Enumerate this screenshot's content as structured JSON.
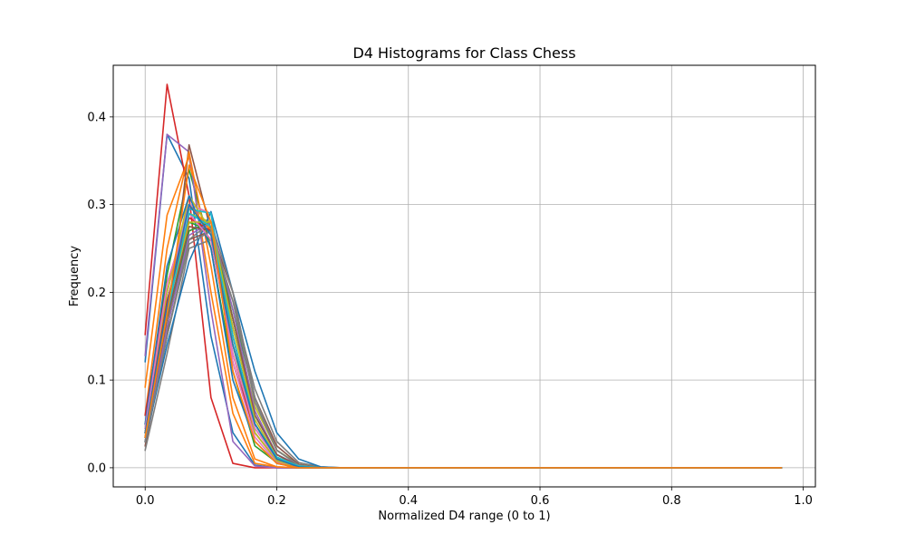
{
  "chart_data": {
    "type": "line",
    "title": "D4 Histograms for Class Chess",
    "xlabel": "Normalized D4 range (0 to 1)",
    "ylabel": "Frequency",
    "xlim": [
      -0.0485,
      1.0185
    ],
    "ylim": [
      -0.0218,
      0.4588
    ],
    "xticks": [
      0.0,
      0.2,
      0.4,
      0.6,
      0.8,
      1.0
    ],
    "xtick_labels": [
      "0.0",
      "0.2",
      "0.4",
      "0.6",
      "0.8",
      "1.0"
    ],
    "yticks": [
      0.0,
      0.1,
      0.2,
      0.3,
      0.4
    ],
    "ytick_labels": [
      "0.0",
      "0.1",
      "0.2",
      "0.3",
      "0.4"
    ],
    "grid": true,
    "legend": false,
    "x": [
      0.0,
      0.0333,
      0.0667,
      0.1,
      0.1333,
      0.1667,
      0.2,
      0.2333,
      0.2667,
      0.3,
      0.3333,
      0.3667,
      0.4,
      0.4333,
      0.4667,
      0.5,
      0.5333,
      0.5667,
      0.6,
      0.6333,
      0.6667,
      0.7,
      0.7333,
      0.7667,
      0.8,
      0.8333,
      0.8667,
      0.9,
      0.9333,
      0.9667
    ],
    "series": [
      {
        "color": "#1f77b4",
        "values": [
          0.121,
          0.38,
          0.33,
          0.15,
          0.04,
          0.003,
          0.0,
          0,
          0,
          0,
          0,
          0,
          0,
          0,
          0,
          0,
          0,
          0,
          0,
          0,
          0,
          0,
          0,
          0,
          0,
          0,
          0,
          0,
          0,
          0
        ]
      },
      {
        "color": "#ff7f0e",
        "values": [
          0.092,
          0.288,
          0.355,
          0.2,
          0.062,
          0.005,
          0.001,
          0,
          0,
          0,
          0,
          0,
          0,
          0,
          0,
          0,
          0,
          0,
          0,
          0,
          0,
          0,
          0,
          0,
          0,
          0,
          0,
          0,
          0,
          0
        ]
      },
      {
        "color": "#2ca02c",
        "values": [
          0.045,
          0.22,
          0.34,
          0.25,
          0.11,
          0.025,
          0.006,
          0.001,
          0,
          0,
          0,
          0,
          0,
          0,
          0,
          0,
          0,
          0,
          0,
          0,
          0,
          0,
          0,
          0,
          0,
          0,
          0,
          0,
          0,
          0
        ]
      },
      {
        "color": "#d62728",
        "values": [
          0.152,
          0.437,
          0.31,
          0.08,
          0.005,
          0.0,
          0.0,
          0,
          0,
          0,
          0,
          0,
          0,
          0,
          0,
          0,
          0,
          0,
          0,
          0,
          0,
          0,
          0,
          0,
          0,
          0,
          0,
          0,
          0,
          0
        ]
      },
      {
        "color": "#9467bd",
        "values": [
          0.128,
          0.38,
          0.36,
          0.18,
          0.03,
          0.002,
          0.0,
          0,
          0,
          0,
          0,
          0,
          0,
          0,
          0,
          0,
          0,
          0,
          0,
          0,
          0,
          0,
          0,
          0,
          0,
          0,
          0,
          0,
          0,
          0
        ]
      },
      {
        "color": "#8c564b",
        "values": [
          0.025,
          0.15,
          0.368,
          0.27,
          0.12,
          0.04,
          0.008,
          0.001,
          0,
          0,
          0,
          0,
          0,
          0,
          0,
          0,
          0,
          0,
          0,
          0,
          0,
          0,
          0,
          0,
          0,
          0,
          0,
          0,
          0,
          0
        ]
      },
      {
        "color": "#e377c2",
        "values": [
          0.035,
          0.18,
          0.31,
          0.27,
          0.14,
          0.05,
          0.012,
          0.002,
          0,
          0,
          0,
          0,
          0,
          0,
          0,
          0,
          0,
          0,
          0,
          0,
          0,
          0,
          0,
          0,
          0,
          0,
          0,
          0,
          0,
          0
        ]
      },
      {
        "color": "#7f7f7f",
        "values": [
          0.02,
          0.13,
          0.25,
          0.26,
          0.19,
          0.09,
          0.03,
          0.006,
          0.001,
          0,
          0,
          0,
          0,
          0,
          0,
          0,
          0,
          0,
          0,
          0,
          0,
          0,
          0,
          0,
          0,
          0,
          0,
          0,
          0,
          0
        ]
      },
      {
        "color": "#bcbd22",
        "values": [
          0.03,
          0.16,
          0.29,
          0.28,
          0.17,
          0.07,
          0.02,
          0.004,
          0,
          0,
          0,
          0,
          0,
          0,
          0,
          0,
          0,
          0,
          0,
          0,
          0,
          0,
          0,
          0,
          0,
          0,
          0,
          0,
          0,
          0
        ]
      },
      {
        "color": "#17becf",
        "values": [
          0.05,
          0.2,
          0.3,
          0.29,
          0.15,
          0.05,
          0.01,
          0.002,
          0,
          0,
          0,
          0,
          0,
          0,
          0,
          0,
          0,
          0,
          0,
          0,
          0,
          0,
          0,
          0,
          0,
          0,
          0,
          0,
          0,
          0
        ]
      },
      {
        "color": "#1f77b4",
        "values": [
          0.03,
          0.14,
          0.235,
          0.292,
          0.2,
          0.11,
          0.04,
          0.01,
          0.001,
          0,
          0,
          0,
          0,
          0,
          0,
          0,
          0,
          0,
          0,
          0,
          0,
          0,
          0,
          0,
          0,
          0,
          0,
          0,
          0,
          0
        ]
      },
      {
        "color": "#ff7f0e",
        "values": [
          0.06,
          0.25,
          0.36,
          0.23,
          0.08,
          0.01,
          0.001,
          0,
          0,
          0,
          0,
          0,
          0,
          0,
          0,
          0,
          0,
          0,
          0,
          0,
          0,
          0,
          0,
          0,
          0,
          0,
          0,
          0,
          0,
          0
        ]
      },
      {
        "color": "#2ca02c",
        "values": [
          0.04,
          0.19,
          0.28,
          0.27,
          0.18,
          0.08,
          0.02,
          0.003,
          0,
          0,
          0,
          0,
          0,
          0,
          0,
          0,
          0,
          0,
          0,
          0,
          0,
          0,
          0,
          0,
          0,
          0,
          0,
          0,
          0,
          0
        ]
      },
      {
        "color": "#d62728",
        "values": [
          0.06,
          0.21,
          0.29,
          0.26,
          0.13,
          0.04,
          0.008,
          0.001,
          0,
          0,
          0,
          0,
          0,
          0,
          0,
          0,
          0,
          0,
          0,
          0,
          0,
          0,
          0,
          0,
          0,
          0,
          0,
          0,
          0,
          0
        ]
      },
      {
        "color": "#9467bd",
        "values": [
          0.04,
          0.17,
          0.27,
          0.28,
          0.16,
          0.06,
          0.015,
          0.002,
          0,
          0,
          0,
          0,
          0,
          0,
          0,
          0,
          0,
          0,
          0,
          0,
          0,
          0,
          0,
          0,
          0,
          0,
          0,
          0,
          0,
          0
        ]
      },
      {
        "color": "#8c564b",
        "values": [
          0.03,
          0.15,
          0.26,
          0.27,
          0.2,
          0.08,
          0.025,
          0.004,
          0,
          0,
          0,
          0,
          0,
          0,
          0,
          0,
          0,
          0,
          0,
          0,
          0,
          0,
          0,
          0,
          0,
          0,
          0,
          0,
          0,
          0
        ]
      },
      {
        "color": "#e377c2",
        "values": [
          0.045,
          0.2,
          0.3,
          0.29,
          0.12,
          0.035,
          0.006,
          0.001,
          0,
          0,
          0,
          0,
          0,
          0,
          0,
          0,
          0,
          0,
          0,
          0,
          0,
          0,
          0,
          0,
          0,
          0,
          0,
          0,
          0,
          0
        ]
      },
      {
        "color": "#7f7f7f",
        "values": [
          0.03,
          0.15,
          0.26,
          0.28,
          0.2,
          0.08,
          0.02,
          0.003,
          0,
          0,
          0,
          0,
          0,
          0,
          0,
          0,
          0,
          0,
          0,
          0,
          0,
          0,
          0,
          0,
          0,
          0,
          0,
          0,
          0,
          0
        ]
      },
      {
        "color": "#bcbd22",
        "values": [
          0.05,
          0.2,
          0.31,
          0.27,
          0.14,
          0.04,
          0.008,
          0.001,
          0,
          0,
          0,
          0,
          0,
          0,
          0,
          0,
          0,
          0,
          0,
          0,
          0,
          0,
          0,
          0,
          0,
          0,
          0,
          0,
          0,
          0
        ]
      },
      {
        "color": "#17becf",
        "values": [
          0.04,
          0.18,
          0.295,
          0.29,
          0.15,
          0.045,
          0.01,
          0.002,
          0,
          0,
          0,
          0,
          0,
          0,
          0,
          0,
          0,
          0,
          0,
          0,
          0,
          0,
          0,
          0,
          0,
          0,
          0,
          0,
          0,
          0
        ]
      },
      {
        "color": "#1f77b4",
        "values": [
          0.05,
          0.23,
          0.31,
          0.25,
          0.1,
          0.03,
          0.005,
          0.0,
          0,
          0,
          0,
          0,
          0,
          0,
          0,
          0,
          0,
          0,
          0,
          0,
          0,
          0,
          0,
          0,
          0,
          0,
          0,
          0,
          0,
          0
        ]
      },
      {
        "color": "#ff7f0e",
        "values": [
          0.035,
          0.17,
          0.3,
          0.27,
          0.15,
          0.05,
          0.012,
          0.002,
          0,
          0,
          0,
          0,
          0,
          0,
          0,
          0,
          0,
          0,
          0,
          0,
          0,
          0,
          0,
          0,
          0,
          0,
          0,
          0,
          0,
          0
        ]
      },
      {
        "color": "#2ca02c",
        "values": [
          0.03,
          0.16,
          0.27,
          0.28,
          0.17,
          0.06,
          0.015,
          0.003,
          0,
          0,
          0,
          0,
          0,
          0,
          0,
          0,
          0,
          0,
          0,
          0,
          0,
          0,
          0,
          0,
          0,
          0,
          0,
          0,
          0,
          0
        ]
      },
      {
        "color": "#d62728",
        "values": [
          0.04,
          0.19,
          0.285,
          0.27,
          0.15,
          0.05,
          0.01,
          0.002,
          0,
          0,
          0,
          0,
          0,
          0,
          0,
          0,
          0,
          0,
          0,
          0,
          0,
          0,
          0,
          0,
          0,
          0,
          0,
          0,
          0,
          0
        ]
      },
      {
        "color": "#9467bd",
        "values": [
          0.03,
          0.16,
          0.265,
          0.28,
          0.18,
          0.065,
          0.015,
          0.003,
          0,
          0,
          0,
          0,
          0,
          0,
          0,
          0,
          0,
          0,
          0,
          0,
          0,
          0,
          0,
          0,
          0,
          0,
          0,
          0,
          0,
          0
        ]
      },
      {
        "color": "#8c564b",
        "values": [
          0.035,
          0.17,
          0.275,
          0.27,
          0.17,
          0.06,
          0.015,
          0.002,
          0,
          0,
          0,
          0,
          0,
          0,
          0,
          0,
          0,
          0,
          0,
          0,
          0,
          0,
          0,
          0,
          0,
          0,
          0,
          0,
          0,
          0
        ]
      },
      {
        "color": "#e377c2",
        "values": [
          0.045,
          0.21,
          0.29,
          0.26,
          0.13,
          0.045,
          0.01,
          0.001,
          0,
          0,
          0,
          0,
          0,
          0,
          0,
          0,
          0,
          0,
          0,
          0,
          0,
          0,
          0,
          0,
          0,
          0,
          0,
          0,
          0,
          0
        ]
      },
      {
        "color": "#7f7f7f",
        "values": [
          0.03,
          0.15,
          0.255,
          0.27,
          0.19,
          0.075,
          0.02,
          0.003,
          0,
          0,
          0,
          0,
          0,
          0,
          0,
          0,
          0,
          0,
          0,
          0,
          0,
          0,
          0,
          0,
          0,
          0,
          0,
          0,
          0,
          0
        ]
      },
      {
        "color": "#bcbd22",
        "values": [
          0.04,
          0.18,
          0.28,
          0.28,
          0.16,
          0.055,
          0.012,
          0.002,
          0,
          0,
          0,
          0,
          0,
          0,
          0,
          0,
          0,
          0,
          0,
          0,
          0,
          0,
          0,
          0,
          0,
          0,
          0,
          0,
          0,
          0
        ]
      },
      {
        "color": "#17becf",
        "values": [
          0.035,
          0.175,
          0.29,
          0.275,
          0.15,
          0.05,
          0.012,
          0.002,
          0,
          0,
          0,
          0,
          0,
          0,
          0,
          0,
          0,
          0,
          0,
          0,
          0,
          0,
          0,
          0,
          0,
          0,
          0,
          0,
          0,
          0
        ]
      },
      {
        "color": "#1f77b4",
        "values": [
          0.04,
          0.185,
          0.3,
          0.265,
          0.14,
          0.05,
          0.01,
          0.001,
          0,
          0,
          0,
          0,
          0,
          0,
          0,
          0,
          0,
          0,
          0,
          0,
          0,
          0,
          0,
          0,
          0,
          0,
          0,
          0,
          0,
          0
        ]
      },
      {
        "color": "#ff7f0e",
        "values": [
          0.035,
          0.175,
          0.345,
          0.28,
          0.11,
          0.03,
          0.005,
          0.0,
          0,
          0,
          0,
          0,
          0,
          0,
          0,
          0,
          0,
          0,
          0,
          0,
          0,
          0,
          0,
          0,
          0,
          0,
          0,
          0,
          0,
          0
        ]
      }
    ]
  }
}
